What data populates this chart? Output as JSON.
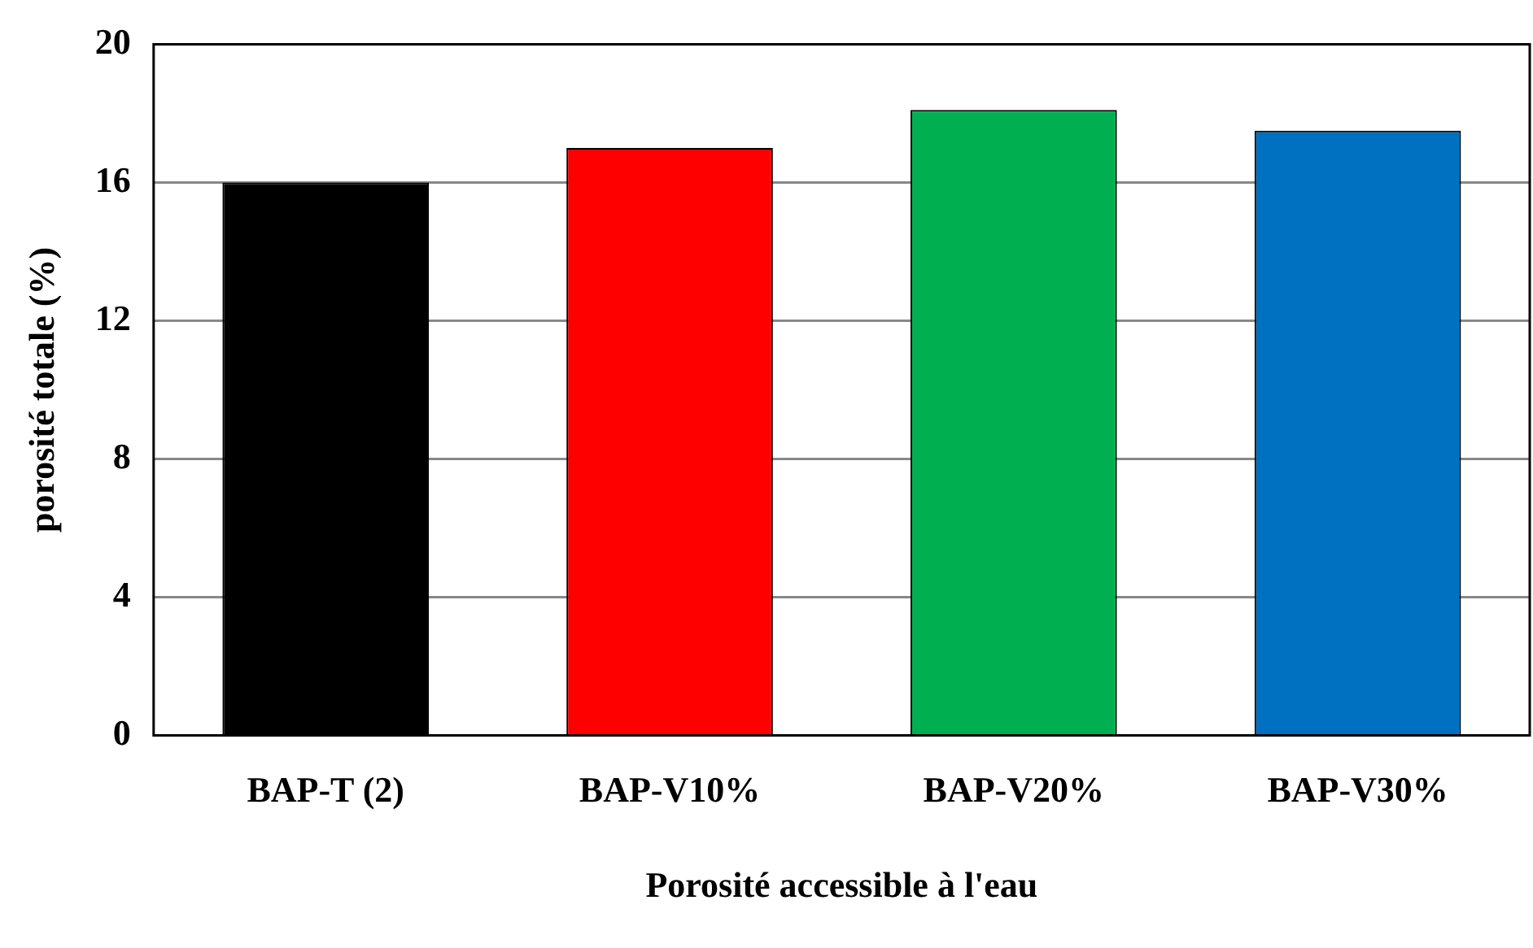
{
  "chart_data": {
    "type": "bar",
    "xlabel": "Porosité accessible à l'eau",
    "ylabel": "porosité totale (%)",
    "categories": [
      "BAP-T (2)",
      "BAP-V10%",
      "BAP-V20%",
      "BAP-V30%"
    ],
    "values": [
      16.0,
      17.0,
      18.1,
      17.5
    ],
    "colors": [
      "#000000",
      "#ff0000",
      "#00b050",
      "#0070c0"
    ],
    "ylim": [
      0,
      20
    ],
    "yticks": [
      0,
      4,
      8,
      12,
      16,
      20
    ],
    "grid": "y",
    "legend": false
  }
}
